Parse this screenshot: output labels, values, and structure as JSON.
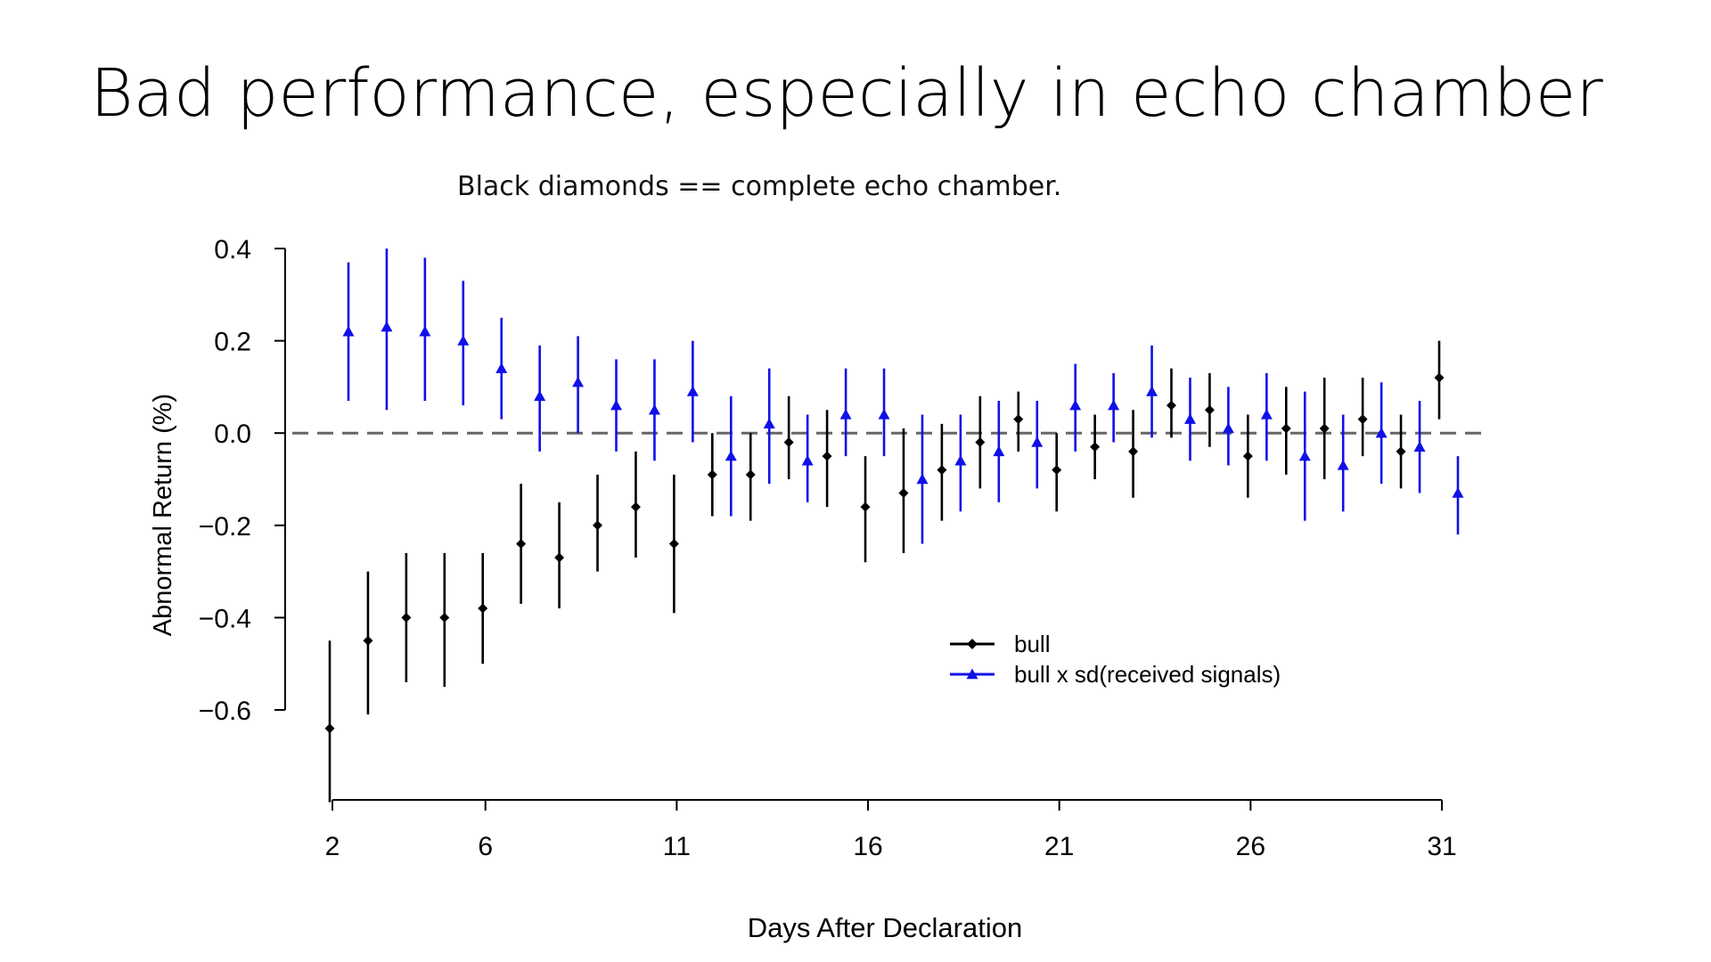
{
  "slide": {
    "title": "Bad performance, especially in echo chamber",
    "subtitle": "Black diamonds == complete echo chamber."
  },
  "colors": {
    "bull": "#000000",
    "bull_sd": "#1010e8",
    "zero_line": "#666666"
  },
  "chart_data": {
    "type": "scatter",
    "title": "",
    "xlabel": "Days After Declaration",
    "ylabel": "Abnormal Return (%)",
    "xlim": [
      2,
      31
    ],
    "ylim": [
      -0.8,
      0.4
    ],
    "x_ticks": [
      2,
      6,
      11,
      16,
      21,
      26,
      31
    ],
    "y_ticks": [
      0.4,
      0.2,
      0.0,
      -0.2,
      -0.4,
      -0.6
    ],
    "y_tick_labels": [
      "0.4",
      "0.2",
      "0.0",
      "−0.2",
      "−0.4",
      "−0.6"
    ],
    "reference_line": 0.0,
    "legend_position": "center-right",
    "grid": false,
    "series": [
      {
        "name": "bull",
        "marker": "diamond",
        "color": "#000000",
        "x": [
          2,
          3,
          4,
          5,
          6,
          7,
          8,
          9,
          10,
          11,
          12,
          13,
          14,
          15,
          16,
          17,
          18,
          19,
          20,
          21,
          22,
          23,
          24,
          25,
          26,
          27,
          28,
          29,
          30,
          31
        ],
        "y": [
          -0.64,
          -0.45,
          -0.4,
          -0.4,
          -0.38,
          -0.24,
          -0.27,
          -0.2,
          -0.16,
          -0.24,
          -0.09,
          -0.09,
          -0.02,
          -0.05,
          -0.16,
          -0.13,
          -0.08,
          -0.02,
          0.03,
          -0.08,
          -0.03,
          -0.04,
          0.06,
          0.05,
          -0.05,
          0.01,
          0.01,
          0.03,
          -0.04,
          0.12
        ],
        "lower": [
          -0.8,
          -0.61,
          -0.54,
          -0.55,
          -0.5,
          -0.37,
          -0.38,
          -0.3,
          -0.27,
          -0.39,
          -0.18,
          -0.19,
          -0.1,
          -0.16,
          -0.28,
          -0.26,
          -0.19,
          -0.12,
          -0.04,
          -0.17,
          -0.1,
          -0.14,
          -0.01,
          -0.03,
          -0.14,
          -0.09,
          -0.1,
          -0.05,
          -0.12,
          0.03
        ],
        "upper": [
          -0.45,
          -0.3,
          -0.26,
          -0.26,
          -0.26,
          -0.11,
          -0.15,
          -0.09,
          -0.04,
          -0.09,
          0.0,
          0.0,
          0.08,
          0.05,
          -0.05,
          0.01,
          0.02,
          0.08,
          0.09,
          0.0,
          0.04,
          0.05,
          0.14,
          0.13,
          0.04,
          0.1,
          0.12,
          0.12,
          0.04,
          0.2
        ]
      },
      {
        "name": "bull x sd(received signals)",
        "marker": "triangle",
        "color": "#1010e8",
        "x": [
          2,
          3,
          4,
          5,
          6,
          7,
          8,
          9,
          10,
          11,
          12,
          13,
          14,
          15,
          16,
          17,
          18,
          19,
          20,
          21,
          22,
          23,
          24,
          25,
          26,
          27,
          28,
          29,
          30,
          31
        ],
        "y": [
          0.22,
          0.23,
          0.22,
          0.2,
          0.14,
          0.08,
          0.11,
          0.06,
          0.05,
          0.09,
          -0.05,
          0.02,
          -0.06,
          0.04,
          0.04,
          -0.1,
          -0.06,
          -0.04,
          -0.02,
          0.06,
          0.06,
          0.09,
          0.03,
          0.01,
          0.04,
          -0.05,
          -0.07,
          0.0,
          -0.03,
          -0.13
        ],
        "lower": [
          0.07,
          0.05,
          0.07,
          0.06,
          0.03,
          -0.04,
          0.0,
          -0.04,
          -0.06,
          -0.02,
          -0.18,
          -0.11,
          -0.15,
          -0.05,
          -0.05,
          -0.24,
          -0.17,
          -0.15,
          -0.12,
          -0.04,
          -0.02,
          -0.01,
          -0.06,
          -0.07,
          -0.06,
          -0.19,
          -0.17,
          -0.11,
          -0.13,
          -0.22
        ],
        "upper": [
          0.37,
          0.4,
          0.38,
          0.33,
          0.25,
          0.19,
          0.21,
          0.16,
          0.16,
          0.2,
          0.08,
          0.14,
          0.04,
          0.14,
          0.14,
          0.04,
          0.04,
          0.07,
          0.07,
          0.15,
          0.13,
          0.19,
          0.12,
          0.1,
          0.13,
          0.09,
          0.04,
          0.11,
          0.07,
          -0.05
        ]
      }
    ]
  }
}
